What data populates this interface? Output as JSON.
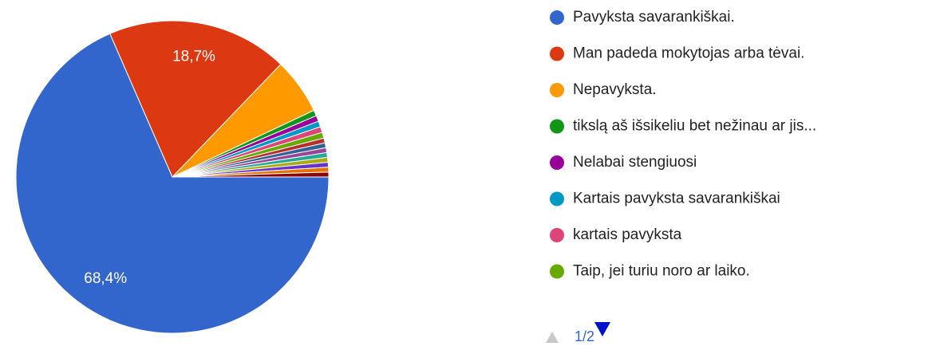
{
  "chart_data": {
    "type": "pie",
    "categories": [
      "Pavyksta savarankiškai.",
      "Man padeda mokytojas arba tėvai.",
      "Nepavyksta.",
      "tikslą aš išsikeliu bet nežinau ar jis...",
      "Nelabai stengiuosi",
      "Kartais pavyksta savarankiškai",
      "kartais pavyksta",
      "Taip, jei turiu noro ar laiko.",
      null,
      null,
      null,
      null,
      null,
      null,
      null,
      null
    ],
    "values": [
      68.4,
      18.7,
      5.8,
      0.6,
      0.6,
      0.6,
      0.6,
      0.6,
      0.5,
      0.5,
      0.5,
      0.5,
      0.5,
      0.5,
      0.5,
      0.5
    ],
    "value_labels": [
      "68,4%",
      "18,7%",
      null,
      null,
      null,
      null,
      null,
      null,
      null,
      null,
      null,
      null,
      null,
      null,
      null,
      null
    ],
    "colors": [
      "#3366cc",
      "#dc3912",
      "#ff9900",
      "#109618",
      "#990099",
      "#0099c6",
      "#dd4477",
      "#66aa00",
      "#b82e2e",
      "#316395",
      "#994499",
      "#22aa99",
      "#aaaa11",
      "#6633cc",
      "#e67300",
      "#8b0707"
    ],
    "legend_page": "1/2"
  }
}
